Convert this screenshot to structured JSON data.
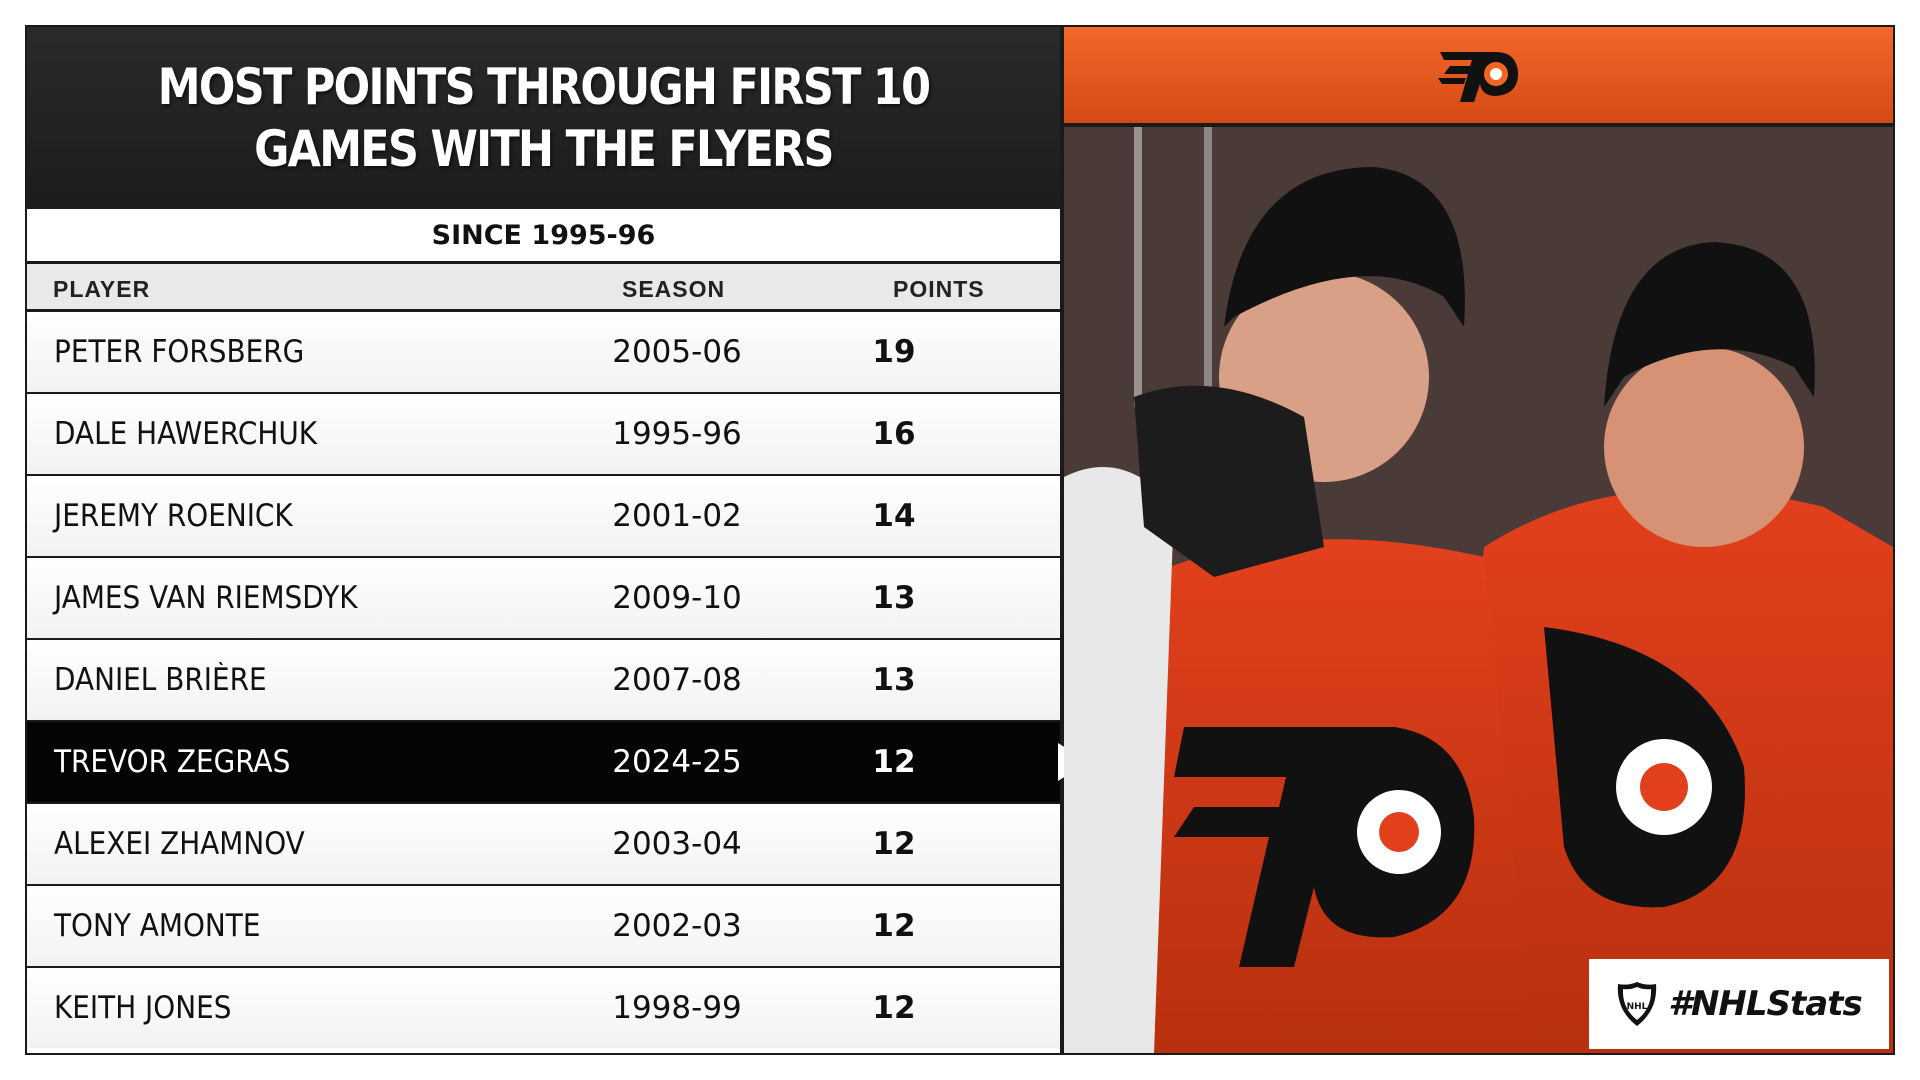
{
  "title": {
    "line1": "MOST POINTS THROUGH FIRST 10",
    "line2": "GAMES WITH THE FLYERS"
  },
  "subtitle": "SINCE 1995-96",
  "columns": {
    "player": "PLAYER",
    "season": "SEASON",
    "points": "POINTS"
  },
  "rows": [
    {
      "player": "PETER FORSBERG",
      "season": "2005-06",
      "points": "19"
    },
    {
      "player": "DALE HAWERCHUK",
      "season": "1995-96",
      "points": "16"
    },
    {
      "player": "JEREMY ROENICK",
      "season": "2001-02",
      "points": "14"
    },
    {
      "player": "JAMES VAN RIEMSDYK",
      "season": "2009-10",
      "points": "13"
    },
    {
      "player": "DANIEL BRIÈRE",
      "season": "2007-08",
      "points": "13"
    },
    {
      "player": "TREVOR ZEGRAS",
      "season": "2024-25",
      "points": "12",
      "highlighted": true
    },
    {
      "player": "ALEXEI ZHAMNOV",
      "season": "2003-04",
      "points": "12"
    },
    {
      "player": "TONY AMONTE",
      "season": "2002-03",
      "points": "12"
    },
    {
      "player": "KEITH JONES",
      "season": "1998-99",
      "points": "12"
    }
  ],
  "hashtag": "#NHLStats",
  "icons": {
    "team_logo": "flyers-logo-icon",
    "league_logo": "nhl-shield-icon",
    "highlight_marker": "arrow-right-icon"
  },
  "colors": {
    "accent": "#f26522",
    "dark": "#1a1a1a",
    "highlight_row": "#050505"
  }
}
